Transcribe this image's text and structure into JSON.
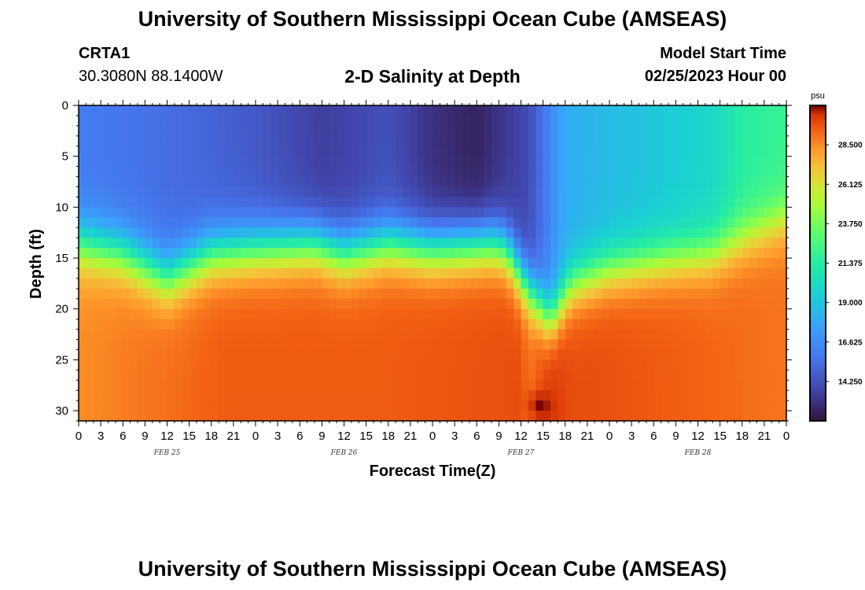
{
  "header": {
    "title": "University of Southern Mississippi Ocean Cube (AMSEAS)",
    "station_id": "CRTA1",
    "station_coords": "30.3080N  88.1400W",
    "chart_title": "2-D Salinity at Depth",
    "model_start_label": "Model Start Time",
    "model_start_value": "02/25/2023 Hour 00"
  },
  "footer": {
    "title": "University of Southern Mississippi Ocean Cube (AMSEAS)"
  },
  "chart_data": {
    "type": "heatmap",
    "title": "2-D Salinity at Depth",
    "xlabel": "Forecast Time(Z)",
    "ylabel": "Depth (ft)",
    "x_range_hours": [
      0,
      96
    ],
    "y_range_ft": [
      0,
      31
    ],
    "y_inverted": true,
    "x_ticks": [
      "0",
      "3",
      "6",
      "9",
      "12",
      "15",
      "18",
      "21",
      "0",
      "3",
      "6",
      "9",
      "12",
      "15",
      "18",
      "21",
      "0",
      "3",
      "6",
      "9",
      "12",
      "15",
      "18",
      "21",
      "0",
      "3",
      "6",
      "9",
      "12",
      "15",
      "18",
      "21",
      "0"
    ],
    "y_ticks": [
      0,
      5,
      10,
      15,
      20,
      25,
      30
    ],
    "day_labels": [
      {
        "hour": 12,
        "label": "FEB 25"
      },
      {
        "hour": 36,
        "label": "FEB 26"
      },
      {
        "hour": 60,
        "label": "FEB 27"
      },
      {
        "hour": 84,
        "label": "FEB 28"
      }
    ],
    "colorbar": {
      "unit": "psu",
      "min": 11.875,
      "max": 30.875,
      "tick_labels": [
        "28.500",
        "26.125",
        "23.750",
        "21.375",
        "19.000",
        "16.625",
        "14.250"
      ],
      "tick_values": [
        28.5,
        26.125,
        23.75,
        21.375,
        19.0,
        16.625,
        14.25
      ]
    },
    "approx_fields": {
      "surface_salinity_psu": {
        "hours": [
          0,
          12,
          24,
          33,
          42,
          48,
          54,
          61,
          64,
          66,
          70,
          76,
          82,
          86,
          90,
          96
        ],
        "values": [
          16.0,
          15.4,
          14.6,
          13.5,
          14.2,
          13.0,
          12.5,
          14.0,
          16.5,
          18.0,
          18.5,
          19.0,
          19.5,
          20.0,
          21.5,
          22.0
        ]
      },
      "halocline_depth_ft": {
        "hours": [
          0,
          6,
          12,
          18,
          24,
          32,
          36,
          42,
          48,
          56,
          58,
          61,
          64,
          67,
          72,
          80,
          86,
          90,
          96
        ],
        "values": [
          13.5,
          14.5,
          17.0,
          14.5,
          14.0,
          13.5,
          14.5,
          13.5,
          14.0,
          13.5,
          14.0,
          18.0,
          21.0,
          17.5,
          16.0,
          15.0,
          14.5,
          13.0,
          11.0
        ]
      },
      "bottom_salinity_psu": {
        "hours": [
          0,
          20,
          40,
          60,
          61,
          64,
          67,
          70,
          80,
          96
        ],
        "values": [
          28.5,
          29.5,
          29.5,
          29.8,
          29.0,
          30.3,
          29.8,
          29.8,
          29.5,
          29.0
        ]
      },
      "bottom_maximum": {
        "hour": 62.5,
        "depth_ft": 29.5,
        "salinity_psu": 30.9
      }
    }
  }
}
